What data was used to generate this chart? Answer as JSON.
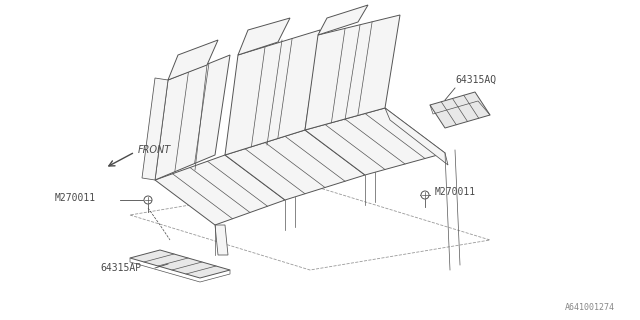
{
  "bg_color": "#ffffff",
  "line_color": "#4a4a4a",
  "text_color": "#4a4a4a",
  "fig_width": 6.4,
  "fig_height": 3.2,
  "dpi": 100,
  "labels": {
    "front": "FRONT",
    "part_aq": "64315AQ",
    "part_ap": "64315AP",
    "bolt_left": "M270011",
    "bolt_right": "M270011"
  },
  "footer": "A641001274",
  "seat_fill": "#f5f5f5",
  "seat_outline": "#555555",
  "rail_fill": "#e8e8e8",
  "dashed_color": "#999999",
  "lw_main": 0.7,
  "lw_detail": 0.5
}
